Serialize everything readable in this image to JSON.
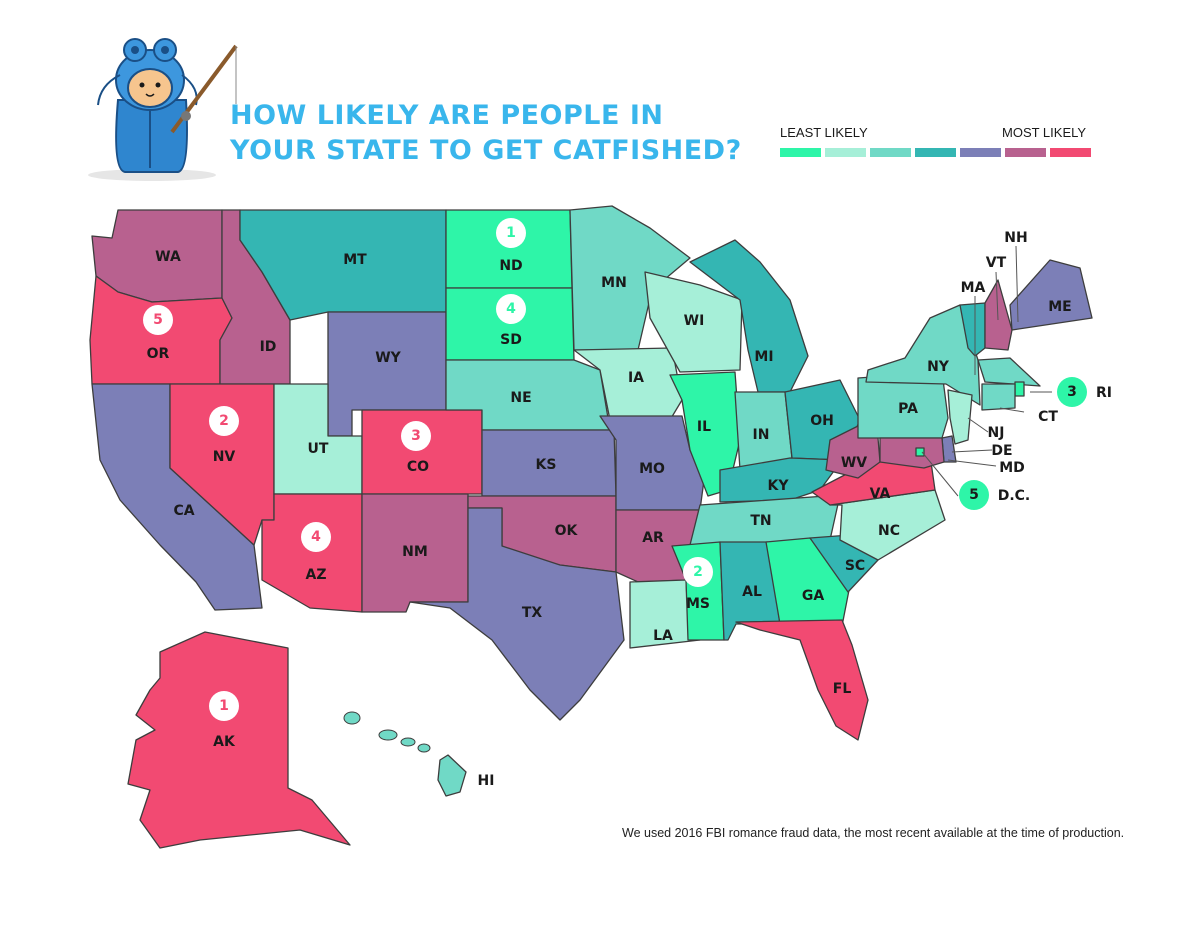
{
  "title": {
    "line1": "HOW LIKELY ARE PEOPLE IN",
    "line2": "YOUR STATE TO GET CATFISHED?"
  },
  "legend": {
    "least_label": "LEAST LIKELY",
    "most_label": "MOST LIKELY",
    "colors": [
      "#2ef5a8",
      "#a6efd8",
      "#70d9c6",
      "#34b6b3",
      "#7c7fb7",
      "#b8618f",
      "#f24a72"
    ]
  },
  "footnote": "We used 2016 FBI romance fraud data, the most recent available at the time of production.",
  "mascot": "catfish-mascot-with-fishing-rod",
  "states": [
    {
      "abbr": "WA",
      "tier": 6
    },
    {
      "abbr": "OR",
      "tier": 7,
      "rank": "5"
    },
    {
      "abbr": "CA",
      "tier": 5
    },
    {
      "abbr": "ID",
      "tier": 6
    },
    {
      "abbr": "NV",
      "tier": 7,
      "rank": "2"
    },
    {
      "abbr": "MT",
      "tier": 4
    },
    {
      "abbr": "WY",
      "tier": 5
    },
    {
      "abbr": "UT",
      "tier": 2
    },
    {
      "abbr": "CO",
      "tier": 7,
      "rank": "3"
    },
    {
      "abbr": "AZ",
      "tier": 7,
      "rank": "4"
    },
    {
      "abbr": "NM",
      "tier": 6
    },
    {
      "abbr": "ND",
      "tier": 1,
      "rank": "1"
    },
    {
      "abbr": "SD",
      "tier": 1,
      "rank": "4"
    },
    {
      "abbr": "NE",
      "tier": 3
    },
    {
      "abbr": "KS",
      "tier": 5
    },
    {
      "abbr": "OK",
      "tier": 6
    },
    {
      "abbr": "TX",
      "tier": 5
    },
    {
      "abbr": "MN",
      "tier": 3
    },
    {
      "abbr": "IA",
      "tier": 2
    },
    {
      "abbr": "MO",
      "tier": 5
    },
    {
      "abbr": "AR",
      "tier": 6
    },
    {
      "abbr": "LA",
      "tier": 2
    },
    {
      "abbr": "WI",
      "tier": 2
    },
    {
      "abbr": "IL",
      "tier": 1
    },
    {
      "abbr": "MI",
      "tier": 4
    },
    {
      "abbr": "IN",
      "tier": 3
    },
    {
      "abbr": "OH",
      "tier": 4
    },
    {
      "abbr": "KY",
      "tier": 4
    },
    {
      "abbr": "TN",
      "tier": 3
    },
    {
      "abbr": "MS",
      "tier": 1,
      "rank": "2"
    },
    {
      "abbr": "AL",
      "tier": 4
    },
    {
      "abbr": "GA",
      "tier": 1
    },
    {
      "abbr": "FL",
      "tier": 7
    },
    {
      "abbr": "SC",
      "tier": 4
    },
    {
      "abbr": "NC",
      "tier": 2
    },
    {
      "abbr": "VA",
      "tier": 7
    },
    {
      "abbr": "WV",
      "tier": 6
    },
    {
      "abbr": "PA",
      "tier": 3
    },
    {
      "abbr": "NY",
      "tier": 3
    },
    {
      "abbr": "VT",
      "tier": 4
    },
    {
      "abbr": "NH",
      "tier": 6
    },
    {
      "abbr": "ME",
      "tier": 5
    },
    {
      "abbr": "MA",
      "tier": 3
    },
    {
      "abbr": "RI",
      "tier": 1,
      "rank": "3"
    },
    {
      "abbr": "CT",
      "tier": 3
    },
    {
      "abbr": "NJ",
      "tier": 2
    },
    {
      "abbr": "DE",
      "tier": 5
    },
    {
      "abbr": "MD",
      "tier": 6
    },
    {
      "abbr": "D.C.",
      "tier": 1,
      "rank": "5"
    },
    {
      "abbr": "AK",
      "tier": 7,
      "rank": "1"
    },
    {
      "abbr": "HI",
      "tier": 3
    }
  ]
}
